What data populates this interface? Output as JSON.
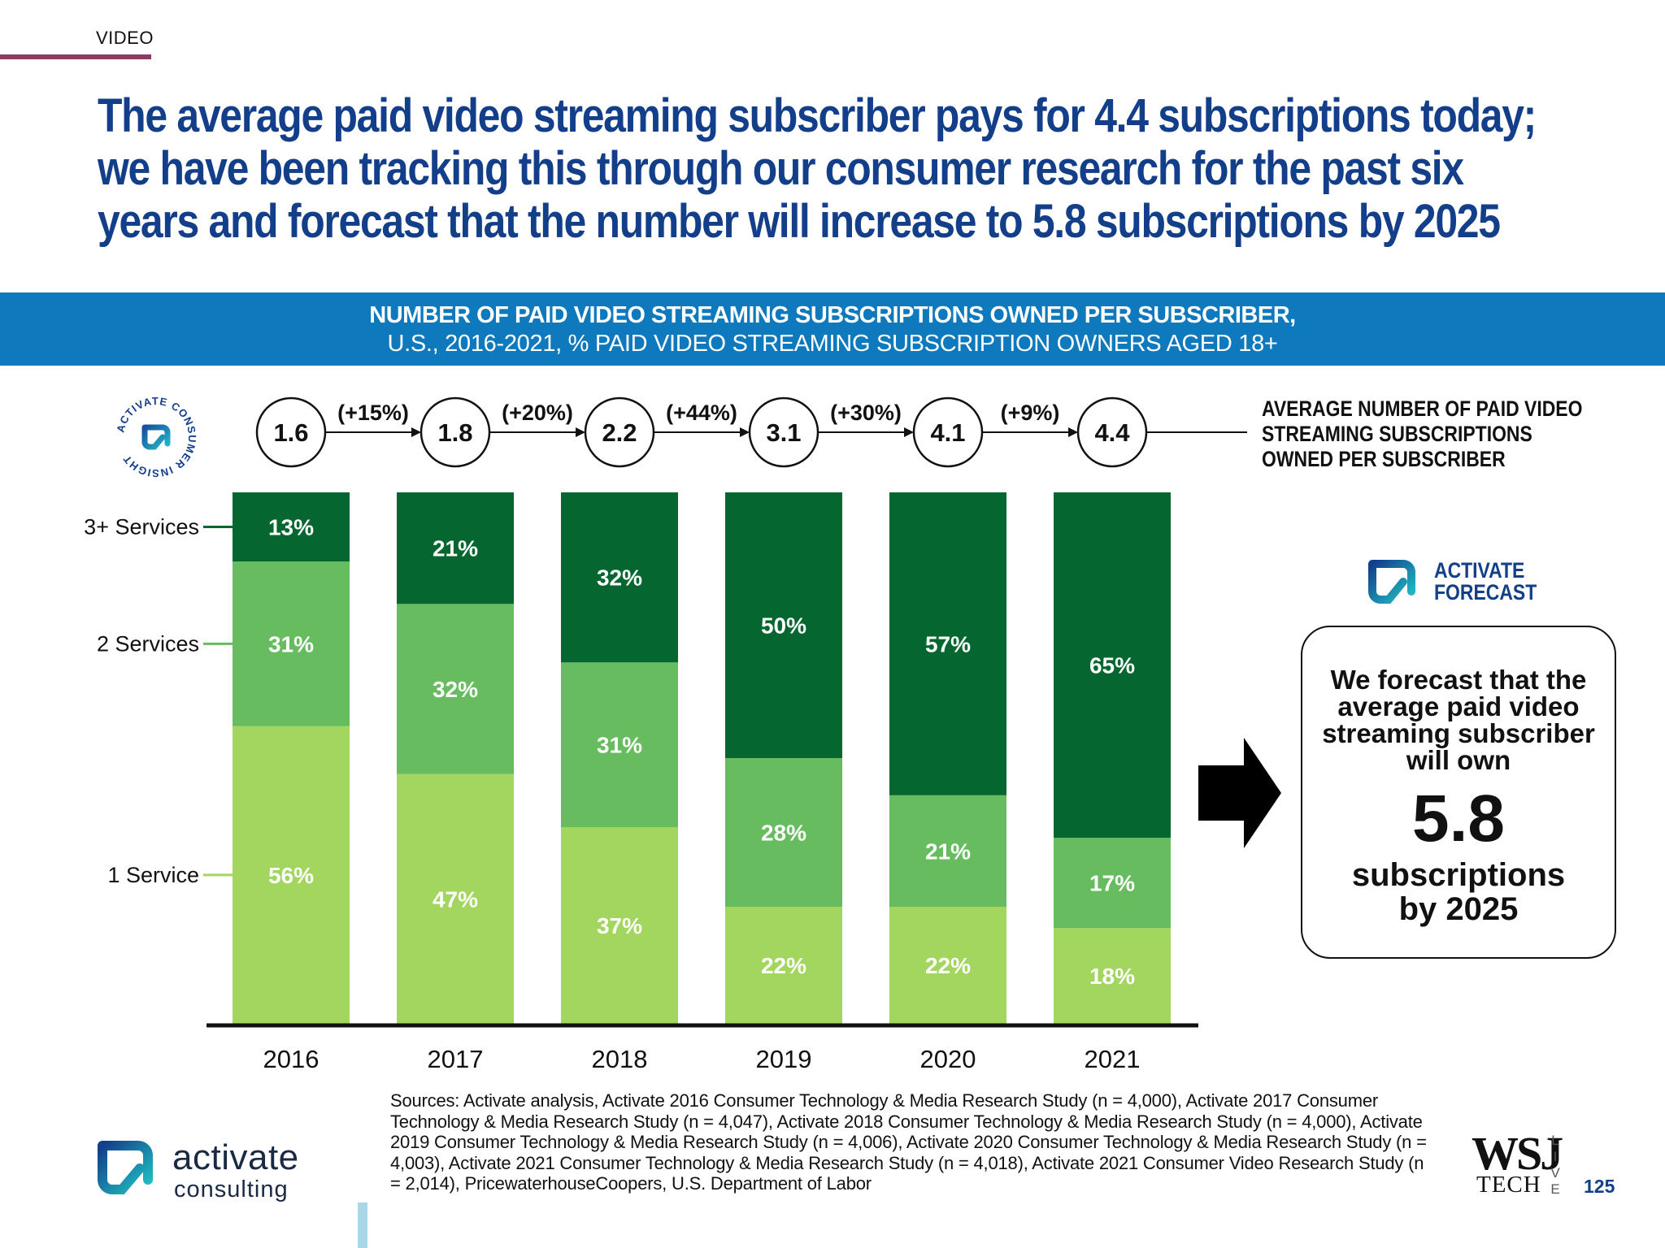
{
  "section_tag": "VIDEO",
  "headline": [
    "The average paid video streaming subscriber pays for 4.4 subscriptions today;",
    "we have been tracking this through our consumer research for the past six",
    "years and forecast that the number will increase to 5.8 subscriptions by 2025"
  ],
  "banner": {
    "line1": "NUMBER OF PAID VIDEO STREAMING SUBSCRIPTIONS OWNED PER SUBSCRIBER,",
    "line2": "U.S., 2016-2021, % PAID VIDEO STREAMING SUBSCRIPTION OWNERS AGED 18+"
  },
  "insight_badge_text": "ACTIVATE CONSUMER INSIGHT",
  "avg_label": [
    "AVERAGE NUMBER OF PAID VIDEO",
    "STREAMING SUBSCRIPTIONS",
    "OWNED PER SUBSCRIBER"
  ],
  "chart_data": {
    "type": "bar",
    "stacked": true,
    "percent": true,
    "categories": [
      "2016",
      "2017",
      "2018",
      "2019",
      "2020",
      "2021"
    ],
    "series": [
      {
        "name": "1 Service",
        "values": [
          56,
          47,
          37,
          22,
          22,
          18
        ],
        "color": "#a3d65f"
      },
      {
        "name": "2 Services",
        "values": [
          31,
          32,
          31,
          28,
          21,
          17
        ],
        "color": "#66bc5e"
      },
      {
        "name": "3+ Services",
        "values": [
          13,
          21,
          32,
          50,
          57,
          65
        ],
        "color": "#05672f"
      }
    ],
    "averages": [
      1.6,
      1.8,
      2.2,
      3.1,
      4.1,
      4.4
    ],
    "growth": [
      "(+15%)",
      "(+20%)",
      "(+44%)",
      "(+30%)",
      "(+9%)"
    ],
    "ylim": [
      0,
      100
    ],
    "legend": "left"
  },
  "forecast": {
    "brand": [
      "ACTIVATE",
      "FORECAST"
    ],
    "text": [
      "We forecast that the",
      "average paid video",
      "streaming subscriber",
      "will own"
    ],
    "number": "5.8",
    "sub": [
      "subscriptions",
      "by 2025"
    ]
  },
  "sources": "Sources: Activate analysis, Activate 2016 Consumer Technology & Media Research Study (n = 4,000), Activate 2017 Consumer Technology & Media Research Study (n = 4,047), Activate 2018 Consumer Technology & Media Research Study (n = 4,000), Activate 2019 Consumer Technology & Media Research Study (n = 4,006), Activate 2020 Consumer Technology & Media Research Study (n = 4,003), Activate 2021 Consumer Technology & Media Research Study (n = 4,018), Activate 2021 Consumer Video Research Study (n = 2,014), PricewaterhouseCoopers, U.S. Department of Labor",
  "logo": {
    "word1": "activate",
    "word2": "consulting"
  },
  "wsj": {
    "mark": "WSJ",
    "tech": "TECH",
    "live": "LIVE"
  },
  "page_number": "125",
  "colors": {
    "brand_blue": "#123e8a",
    "banner": "#0f79bd",
    "section_line": "#8a3a63"
  }
}
